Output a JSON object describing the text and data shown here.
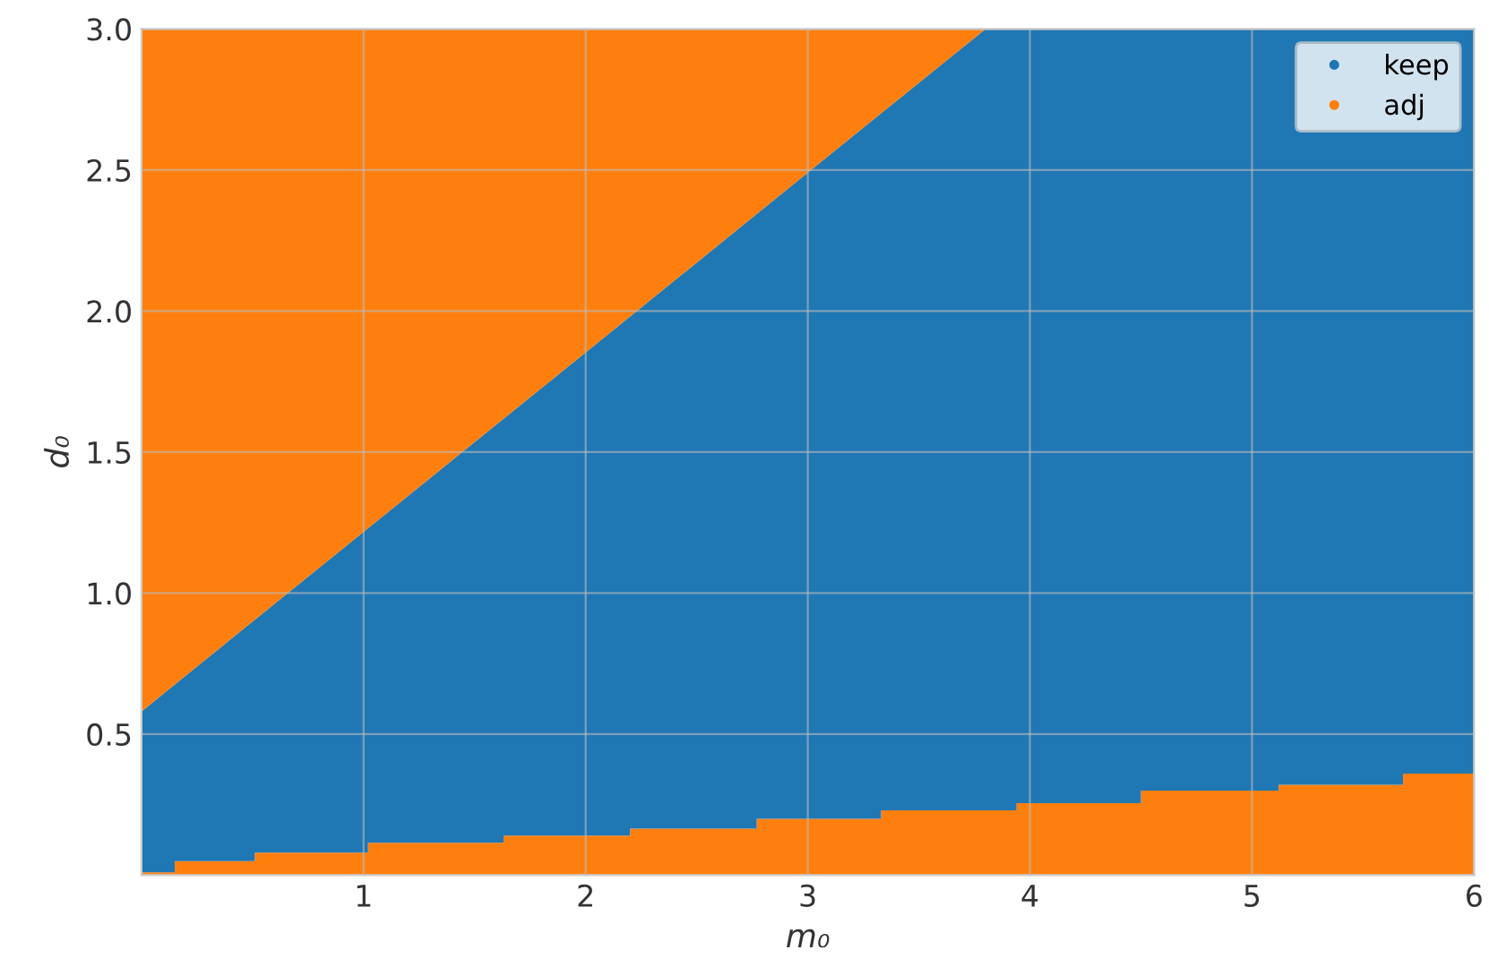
{
  "chart_data": {
    "type": "area",
    "stacked": true,
    "xlabel": "m₀",
    "ylabel": "d₀",
    "x": [
      0,
      0.15,
      0.15,
      0.51,
      0.51,
      1.02,
      1.02,
      1.63,
      1.63,
      2.2,
      2.2,
      2.77,
      2.77,
      3.33,
      3.33,
      3.8,
      3.94,
      3.94,
      4.5,
      4.5,
      5.12,
      5.12,
      5.68,
      5.68,
      6
    ],
    "series": [
      {
        "name": "adj",
        "color": "#ff7f0e",
        "values": [
          0.01,
          0.01,
          0.05,
          0.05,
          0.08,
          0.08,
          0.115,
          0.115,
          0.14,
          0.14,
          0.165,
          0.165,
          0.2,
          0.2,
          0.23,
          0.23,
          0.23,
          0.255,
          0.255,
          0.3,
          0.3,
          0.32,
          0.32,
          0.36,
          0.36
        ]
      },
      {
        "name": "keep",
        "color": "#1f77b4",
        "values": [
          0.57,
          0.666,
          0.626,
          0.855,
          0.825,
          1.15,
          1.115,
          1.503,
          1.478,
          1.841,
          1.816,
          2.179,
          2.144,
          2.501,
          2.471,
          2.77,
          2.77,
          2.745,
          2.745,
          2.7,
          2.7,
          2.68,
          2.68,
          2.64,
          2.64
        ]
      },
      {
        "color": "#ff7f0e",
        "values": [
          2.42,
          2.324,
          2.324,
          2.095,
          2.095,
          1.77,
          1.77,
          1.382,
          1.382,
          1.019,
          1.019,
          0.656,
          0.656,
          0.299,
          0.299,
          0,
          0,
          0,
          0,
          0,
          0,
          0,
          0,
          0,
          0
        ]
      }
    ],
    "xlim": [
      0,
      6
    ],
    "ylim": [
      0,
      3
    ],
    "xticks": [
      1,
      2,
      3,
      4,
      5,
      6
    ],
    "yticks": [
      0.5,
      {
        "value": 1,
        "label": "1.0"
      },
      1.5,
      {
        "value": 2,
        "label": "2.0"
      },
      2.5,
      {
        "value": 3,
        "label": "3.0"
      }
    ],
    "legend": "top right",
    "grid": true
  }
}
